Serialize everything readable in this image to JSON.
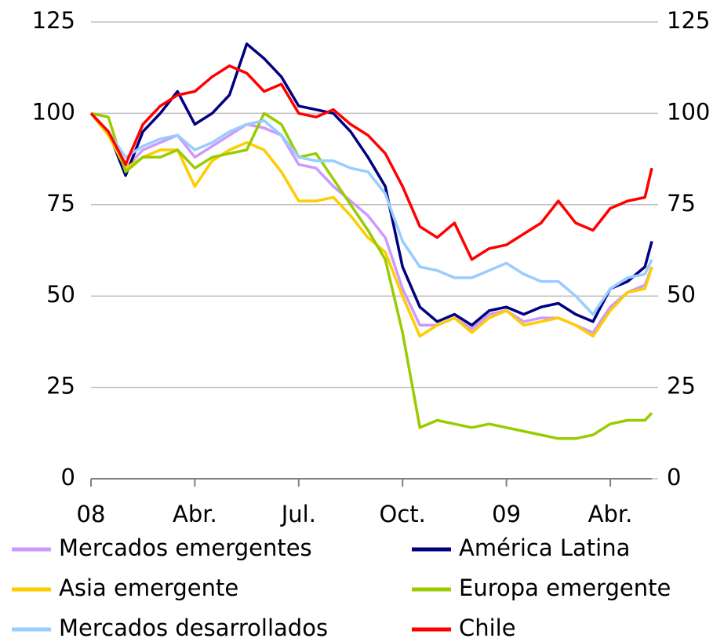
{
  "chart_data": {
    "type": "line",
    "x": [
      0,
      0.5,
      1,
      1.5,
      2,
      2.5,
      3,
      3.5,
      4,
      4.5,
      5,
      5.5,
      6,
      6.5,
      7,
      7.5,
      8,
      8.5,
      9,
      9.5,
      10,
      10.5,
      11,
      11.5,
      12,
      12.5,
      13,
      13.5,
      14,
      14.5,
      15,
      15.5,
      16,
      16.2
    ],
    "xlim": [
      0,
      16.2
    ],
    "xticks": [
      {
        "value": 0,
        "label": "08"
      },
      {
        "value": 3,
        "label": "Abr."
      },
      {
        "value": 6,
        "label": "Jul."
      },
      {
        "value": 9,
        "label": "Oct."
      },
      {
        "value": 12,
        "label": "09"
      },
      {
        "value": 15,
        "label": "Abr."
      }
    ],
    "ylim": [
      0,
      125
    ],
    "yticks": [
      0,
      25,
      50,
      75,
      100,
      125
    ],
    "y2lim": [
      0,
      125
    ],
    "y2ticks": [
      0,
      25,
      50,
      75,
      100,
      125
    ],
    "grid": true,
    "series": [
      {
        "name": "Mercados emergentes",
        "color": "#cc99ff",
        "values": [
          100,
          95,
          85,
          90,
          92,
          94,
          88,
          91,
          94,
          97,
          96,
          94,
          86,
          85,
          80,
          76,
          72,
          66,
          52,
          42,
          42,
          44,
          41,
          45,
          46,
          43,
          44,
          44,
          42,
          40,
          47,
          51,
          53,
          58
        ]
      },
      {
        "name": "América Latina",
        "color": "#000080",
        "values": [
          100,
          95,
          83,
          95,
          100,
          106,
          97,
          100,
          105,
          119,
          115,
          110,
          102,
          101,
          100,
          95,
          88,
          80,
          58,
          47,
          43,
          45,
          42,
          46,
          47,
          45,
          47,
          48,
          45,
          43,
          52,
          54,
          58,
          65
        ]
      },
      {
        "name": "Asia emergente",
        "color": "#ffcc00",
        "values": [
          100,
          94,
          85,
          88,
          90,
          90,
          80,
          87,
          90,
          92,
          90,
          84,
          76,
          76,
          77,
          72,
          66,
          62,
          50,
          39,
          42,
          44,
          40,
          44,
          46,
          42,
          43,
          44,
          42,
          39,
          46,
          51,
          52,
          58
        ]
      },
      {
        "name": "Europa emergente",
        "color": "#99cc00",
        "values": [
          100,
          99,
          84,
          88,
          88,
          90,
          85,
          88,
          89,
          90,
          100,
          97,
          88,
          89,
          82,
          75,
          68,
          60,
          40,
          14,
          16,
          15,
          14,
          15,
          14,
          13,
          12,
          11,
          11,
          12,
          15,
          16,
          16,
          18
        ]
      },
      {
        "name": "Mercados desarrollados",
        "color": "#99ccff",
        "values": [
          100,
          95,
          88,
          91,
          93,
          94,
          90,
          92,
          95,
          97,
          98,
          94,
          88,
          87,
          87,
          85,
          84,
          78,
          65,
          58,
          57,
          55,
          55,
          57,
          59,
          56,
          54,
          54,
          50,
          45,
          52,
          55,
          56,
          60
        ]
      },
      {
        "name": "Chile",
        "color": "#ff0000",
        "values": [
          100,
          95,
          86,
          97,
          102,
          105,
          106,
          110,
          113,
          111,
          106,
          108,
          100,
          99,
          101,
          97,
          94,
          89,
          80,
          69,
          66,
          70,
          60,
          63,
          64,
          67,
          70,
          76,
          70,
          68,
          74,
          76,
          77,
          85
        ]
      }
    ]
  }
}
